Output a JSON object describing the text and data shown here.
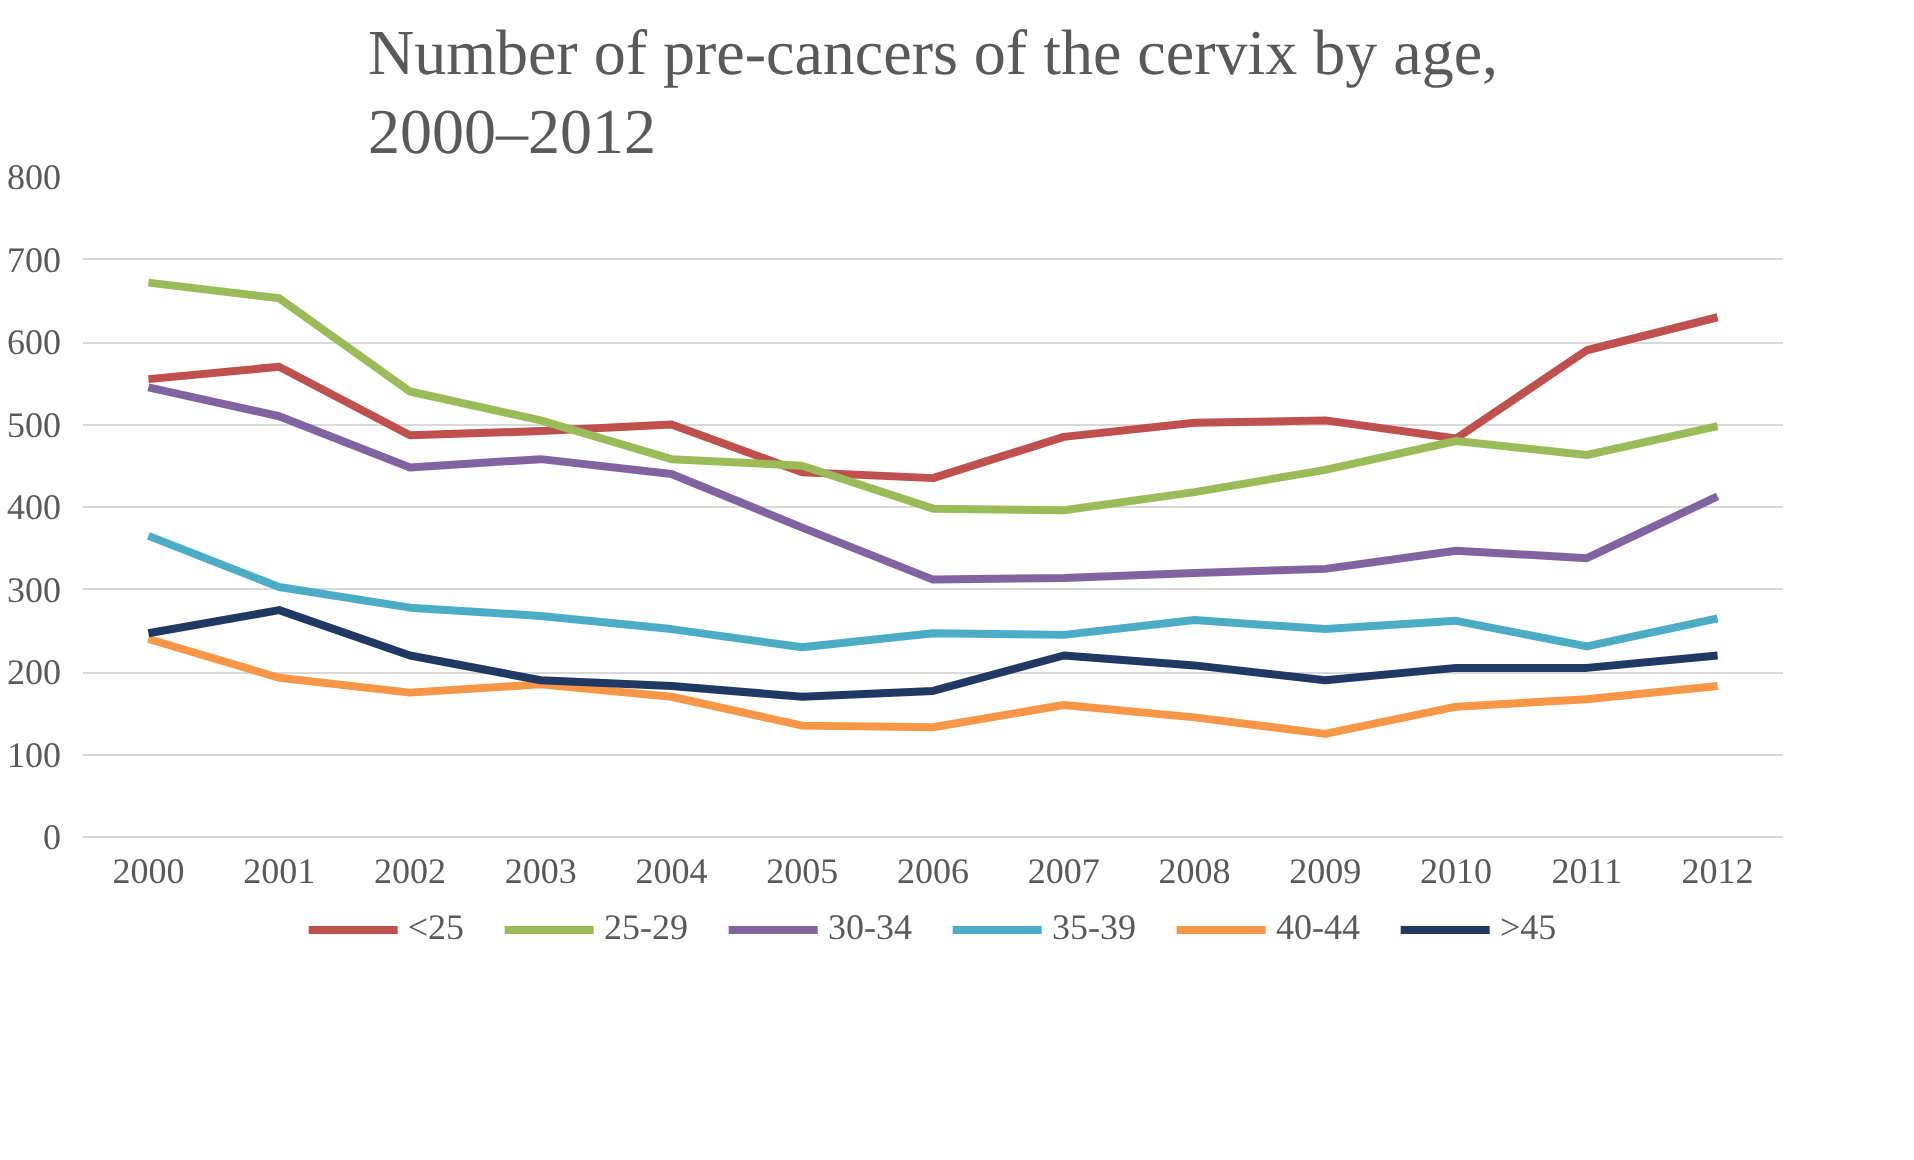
{
  "chart_data": {
    "type": "line",
    "title": "Number of pre-cancers of the cervix by age,\n2000–2012",
    "categories": [
      "2000",
      "2001",
      "2002",
      "2003",
      "2004",
      "2005",
      "2006",
      "2007",
      "2008",
      "2009",
      "2010",
      "2011",
      "2012"
    ],
    "series": [
      {
        "name": "<25",
        "color": "#c0504d",
        "values": [
          555,
          570,
          487,
          492,
          500,
          442,
          435,
          485,
          502,
          505,
          483,
          590,
          630
        ]
      },
      {
        "name": "25-29",
        "color": "#9bbb59",
        "values": [
          672,
          653,
          540,
          505,
          458,
          450,
          398,
          396,
          418,
          445,
          480,
          463,
          498
        ]
      },
      {
        "name": "30-34",
        "color": "#8064a2",
        "values": [
          545,
          510,
          448,
          458,
          440,
          375,
          312,
          314,
          320,
          325,
          347,
          338,
          413
        ]
      },
      {
        "name": "35-39",
        "color": "#4bacc6",
        "values": [
          365,
          303,
          278,
          268,
          252,
          230,
          247,
          245,
          263,
          252,
          262,
          231,
          265
        ]
      },
      {
        "name": "40-44",
        "color": "#f79646",
        "values": [
          240,
          193,
          175,
          185,
          170,
          135,
          133,
          160,
          145,
          125,
          158,
          167,
          183
        ]
      },
      {
        "name": ">45",
        "color": "#1f3864",
        "values": [
          247,
          275,
          220,
          190,
          183,
          170,
          177,
          220,
          208,
          190,
          205,
          205,
          220
        ]
      }
    ],
    "ylim": [
      0,
      800
    ],
    "yticks": [
      0,
      100,
      200,
      300,
      400,
      500,
      600,
      700,
      800
    ],
    "grid": "y",
    "legend": "bottom",
    "marker": "none",
    "line_style": "solid"
  }
}
